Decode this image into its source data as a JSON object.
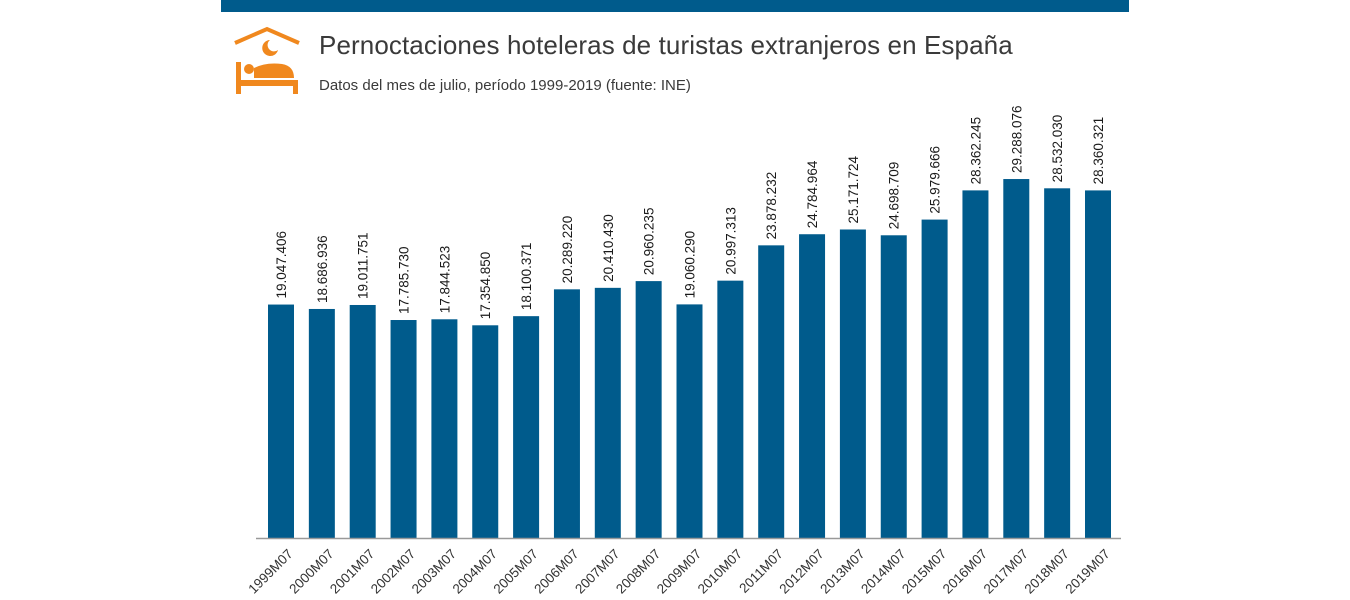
{
  "header": {
    "title": "Pernoctaciones hoteleras de turistas extranjeros en España",
    "subtitle": "Datos del mes de julio, período 1999-2019 (fuente: INE)",
    "logo_icon": "hotel-bed-night-icon"
  },
  "colors": {
    "bar": "#005b8c",
    "topbar": "#005b8c",
    "logo": "#f0881e",
    "axis": "#999999"
  },
  "chart_data": {
    "type": "bar",
    "title": "Pernoctaciones hoteleras de turistas extranjeros en España",
    "subtitle": "Datos del mes de julio, período 1999-2019 (fuente: INE)",
    "xlabel": "",
    "ylabel": "",
    "ylim": [
      0,
      35900000
    ],
    "grid": false,
    "legend": "none",
    "categories": [
      "1999M07",
      "2000M07",
      "2001M07",
      "2002M07",
      "2003M07",
      "2004M07",
      "2005M07",
      "2006M07",
      "2007M07",
      "2008M07",
      "2009M07",
      "2010M07",
      "2011M07",
      "2012M07",
      "2013M07",
      "2014M07",
      "2015M07",
      "2016M07",
      "2017M07",
      "2018M07",
      "2019M07"
    ],
    "values": [
      19047406,
      18686936,
      19011751,
      17785730,
      17844523,
      17354850,
      18100371,
      20289220,
      20410430,
      20960235,
      19060290,
      20997313,
      23878232,
      24784964,
      25171724,
      24698709,
      25979666,
      28362245,
      29288076,
      28532030,
      28360321
    ],
    "value_labels": [
      "19.047.406",
      "18.686.936",
      "19.011.751",
      "17.785.730",
      "17.844.523",
      "17.354.850",
      "18.100.371",
      "20.289.220",
      "20.410.430",
      "20.960.235",
      "19.060.290",
      "20.997.313",
      "23.878.232",
      "24.784.964",
      "25.171.724",
      "24.698.709",
      "25.979.666",
      "28.362.245",
      "29.288.076",
      "28.532.030",
      "28.360.321"
    ]
  }
}
